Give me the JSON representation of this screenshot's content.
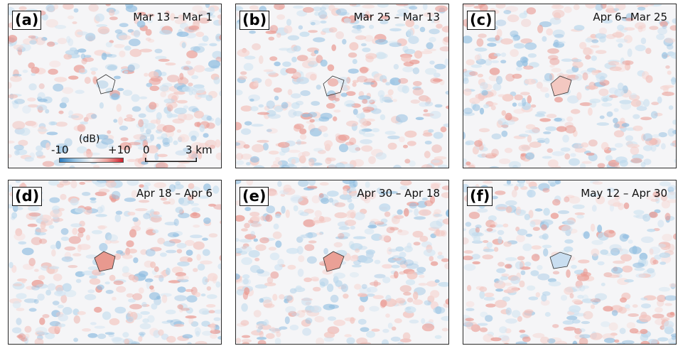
{
  "legend": {
    "unit": "(dB)",
    "min": "-10",
    "max": "+10"
  },
  "scalebar": {
    "start": "0",
    "end": "3 km"
  },
  "colormap": {
    "negative": "#2a7bbf",
    "neutral": "#f5f5f5",
    "positive": "#d0202d"
  },
  "panels": [
    {
      "label": "(a)",
      "date": "Mar 13 – Mar 1"
    },
    {
      "label": "(b)",
      "date": "Mar 25 – Mar 13"
    },
    {
      "label": "(c)",
      "date": "Apr 6– Mar 25"
    },
    {
      "label": "(d)",
      "date": "Apr 18 – Apr 6"
    },
    {
      "label": "(e)",
      "date": "Apr 30 – Apr 18"
    },
    {
      "label": "(f)",
      "date": "May 12 – Apr 30"
    }
  ]
}
